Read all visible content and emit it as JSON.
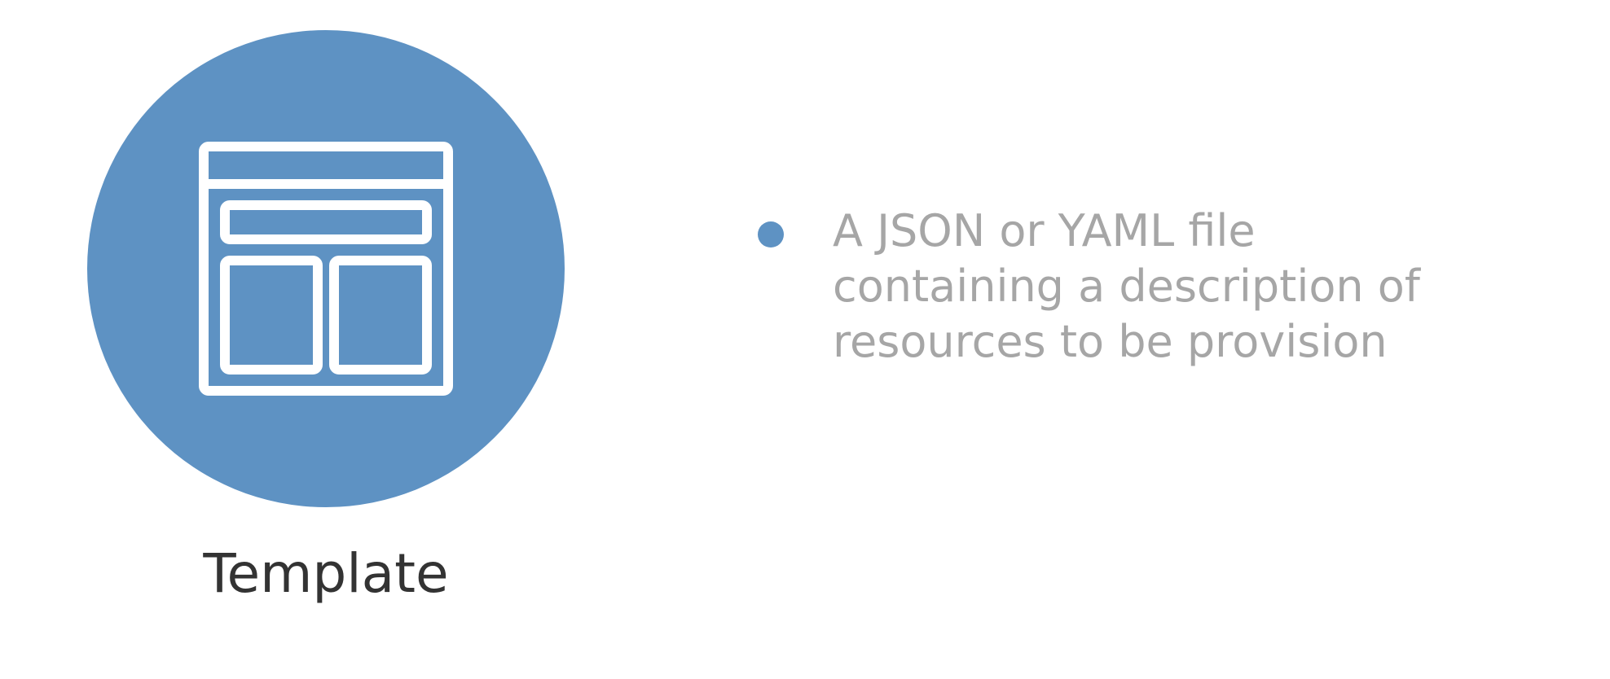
{
  "icon": {
    "name": "template-layout-icon",
    "circle_color": "#5e92c3",
    "stroke_color": "#ffffff"
  },
  "caption": "Template",
  "bullets": [
    {
      "lines": [
        "A JSON or YAML file",
        "containing a description of",
        "resources to be provision"
      ]
    }
  ],
  "colors": {
    "accent": "#5e92c3",
    "caption_text": "#333333",
    "bullet_text": "#a6a6a6"
  }
}
